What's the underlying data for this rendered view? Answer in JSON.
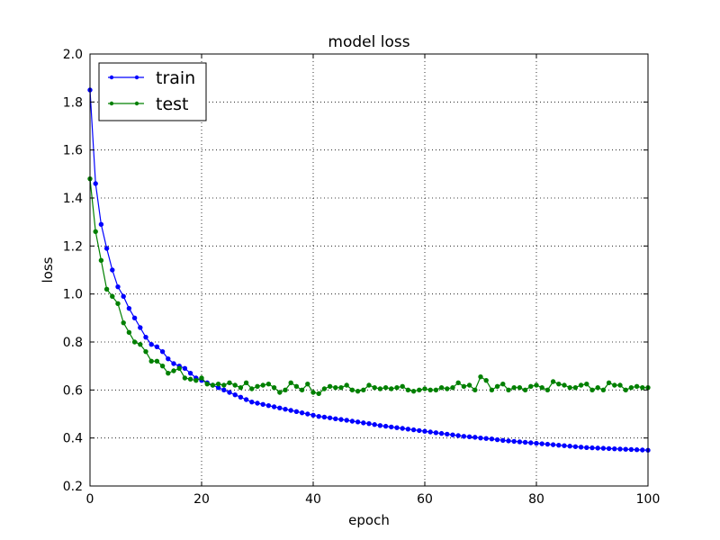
{
  "chart_data": {
    "type": "line",
    "title": "model loss",
    "xlabel": "epoch",
    "ylabel": "loss",
    "xlim": [
      0,
      100
    ],
    "ylim": [
      0.2,
      2.0
    ],
    "xticks": [
      0,
      20,
      40,
      60,
      80,
      100
    ],
    "yticks": [
      0.2,
      0.4,
      0.6,
      0.8,
      1.0,
      1.2,
      1.4,
      1.6,
      1.8,
      2.0
    ],
    "xtick_labels": [
      "0",
      "20",
      "40",
      "60",
      "80",
      "100"
    ],
    "ytick_labels": [
      "0.2",
      "0.4",
      "0.6",
      "0.8",
      "1.0",
      "1.2",
      "1.4",
      "1.6",
      "1.8",
      "2.0"
    ],
    "grid": true,
    "legend_position": "top-left",
    "series": [
      {
        "name": "train",
        "color": "#0000ff",
        "values": [
          1.85,
          1.46,
          1.29,
          1.19,
          1.1,
          1.03,
          0.99,
          0.94,
          0.9,
          0.86,
          0.82,
          0.79,
          0.78,
          0.76,
          0.73,
          0.71,
          0.7,
          0.69,
          0.67,
          0.65,
          0.64,
          0.63,
          0.62,
          0.61,
          0.6,
          0.59,
          0.58,
          0.57,
          0.56,
          0.55,
          0.545,
          0.54,
          0.535,
          0.53,
          0.525,
          0.52,
          0.515,
          0.51,
          0.505,
          0.5,
          0.495,
          0.49,
          0.487,
          0.484,
          0.48,
          0.477,
          0.474,
          0.47,
          0.467,
          0.463,
          0.46,
          0.456,
          0.452,
          0.449,
          0.446,
          0.443,
          0.44,
          0.437,
          0.434,
          0.431,
          0.428,
          0.425,
          0.422,
          0.419,
          0.416,
          0.413,
          0.41,
          0.407,
          0.405,
          0.403,
          0.4,
          0.398,
          0.396,
          0.393,
          0.39,
          0.388,
          0.386,
          0.384,
          0.382,
          0.38,
          0.378,
          0.376,
          0.374,
          0.372,
          0.37,
          0.368,
          0.366,
          0.364,
          0.362,
          0.36,
          0.359,
          0.358,
          0.357,
          0.356,
          0.355,
          0.354,
          0.353,
          0.352,
          0.351,
          0.35,
          0.349
        ]
      },
      {
        "name": "test",
        "color": "#008000",
        "values": [
          1.48,
          1.26,
          1.14,
          1.02,
          0.99,
          0.96,
          0.88,
          0.84,
          0.8,
          0.79,
          0.76,
          0.72,
          0.72,
          0.7,
          0.67,
          0.68,
          0.69,
          0.65,
          0.645,
          0.64,
          0.65,
          0.625,
          0.62,
          0.625,
          0.62,
          0.63,
          0.62,
          0.61,
          0.63,
          0.605,
          0.615,
          0.62,
          0.625,
          0.61,
          0.59,
          0.6,
          0.63,
          0.615,
          0.6,
          0.625,
          0.59,
          0.585,
          0.605,
          0.615,
          0.61,
          0.61,
          0.62,
          0.6,
          0.595,
          0.6,
          0.62,
          0.61,
          0.605,
          0.61,
          0.605,
          0.61,
          0.615,
          0.6,
          0.595,
          0.6,
          0.605,
          0.6,
          0.6,
          0.61,
          0.605,
          0.61,
          0.63,
          0.615,
          0.62,
          0.6,
          0.655,
          0.64,
          0.6,
          0.615,
          0.625,
          0.6,
          0.61,
          0.61,
          0.6,
          0.615,
          0.62,
          0.61,
          0.6,
          0.635,
          0.625,
          0.62,
          0.61,
          0.61,
          0.62,
          0.625,
          0.6,
          0.61,
          0.6,
          0.63,
          0.62,
          0.62,
          0.6,
          0.61,
          0.615,
          0.61,
          0.61
        ]
      }
    ]
  }
}
